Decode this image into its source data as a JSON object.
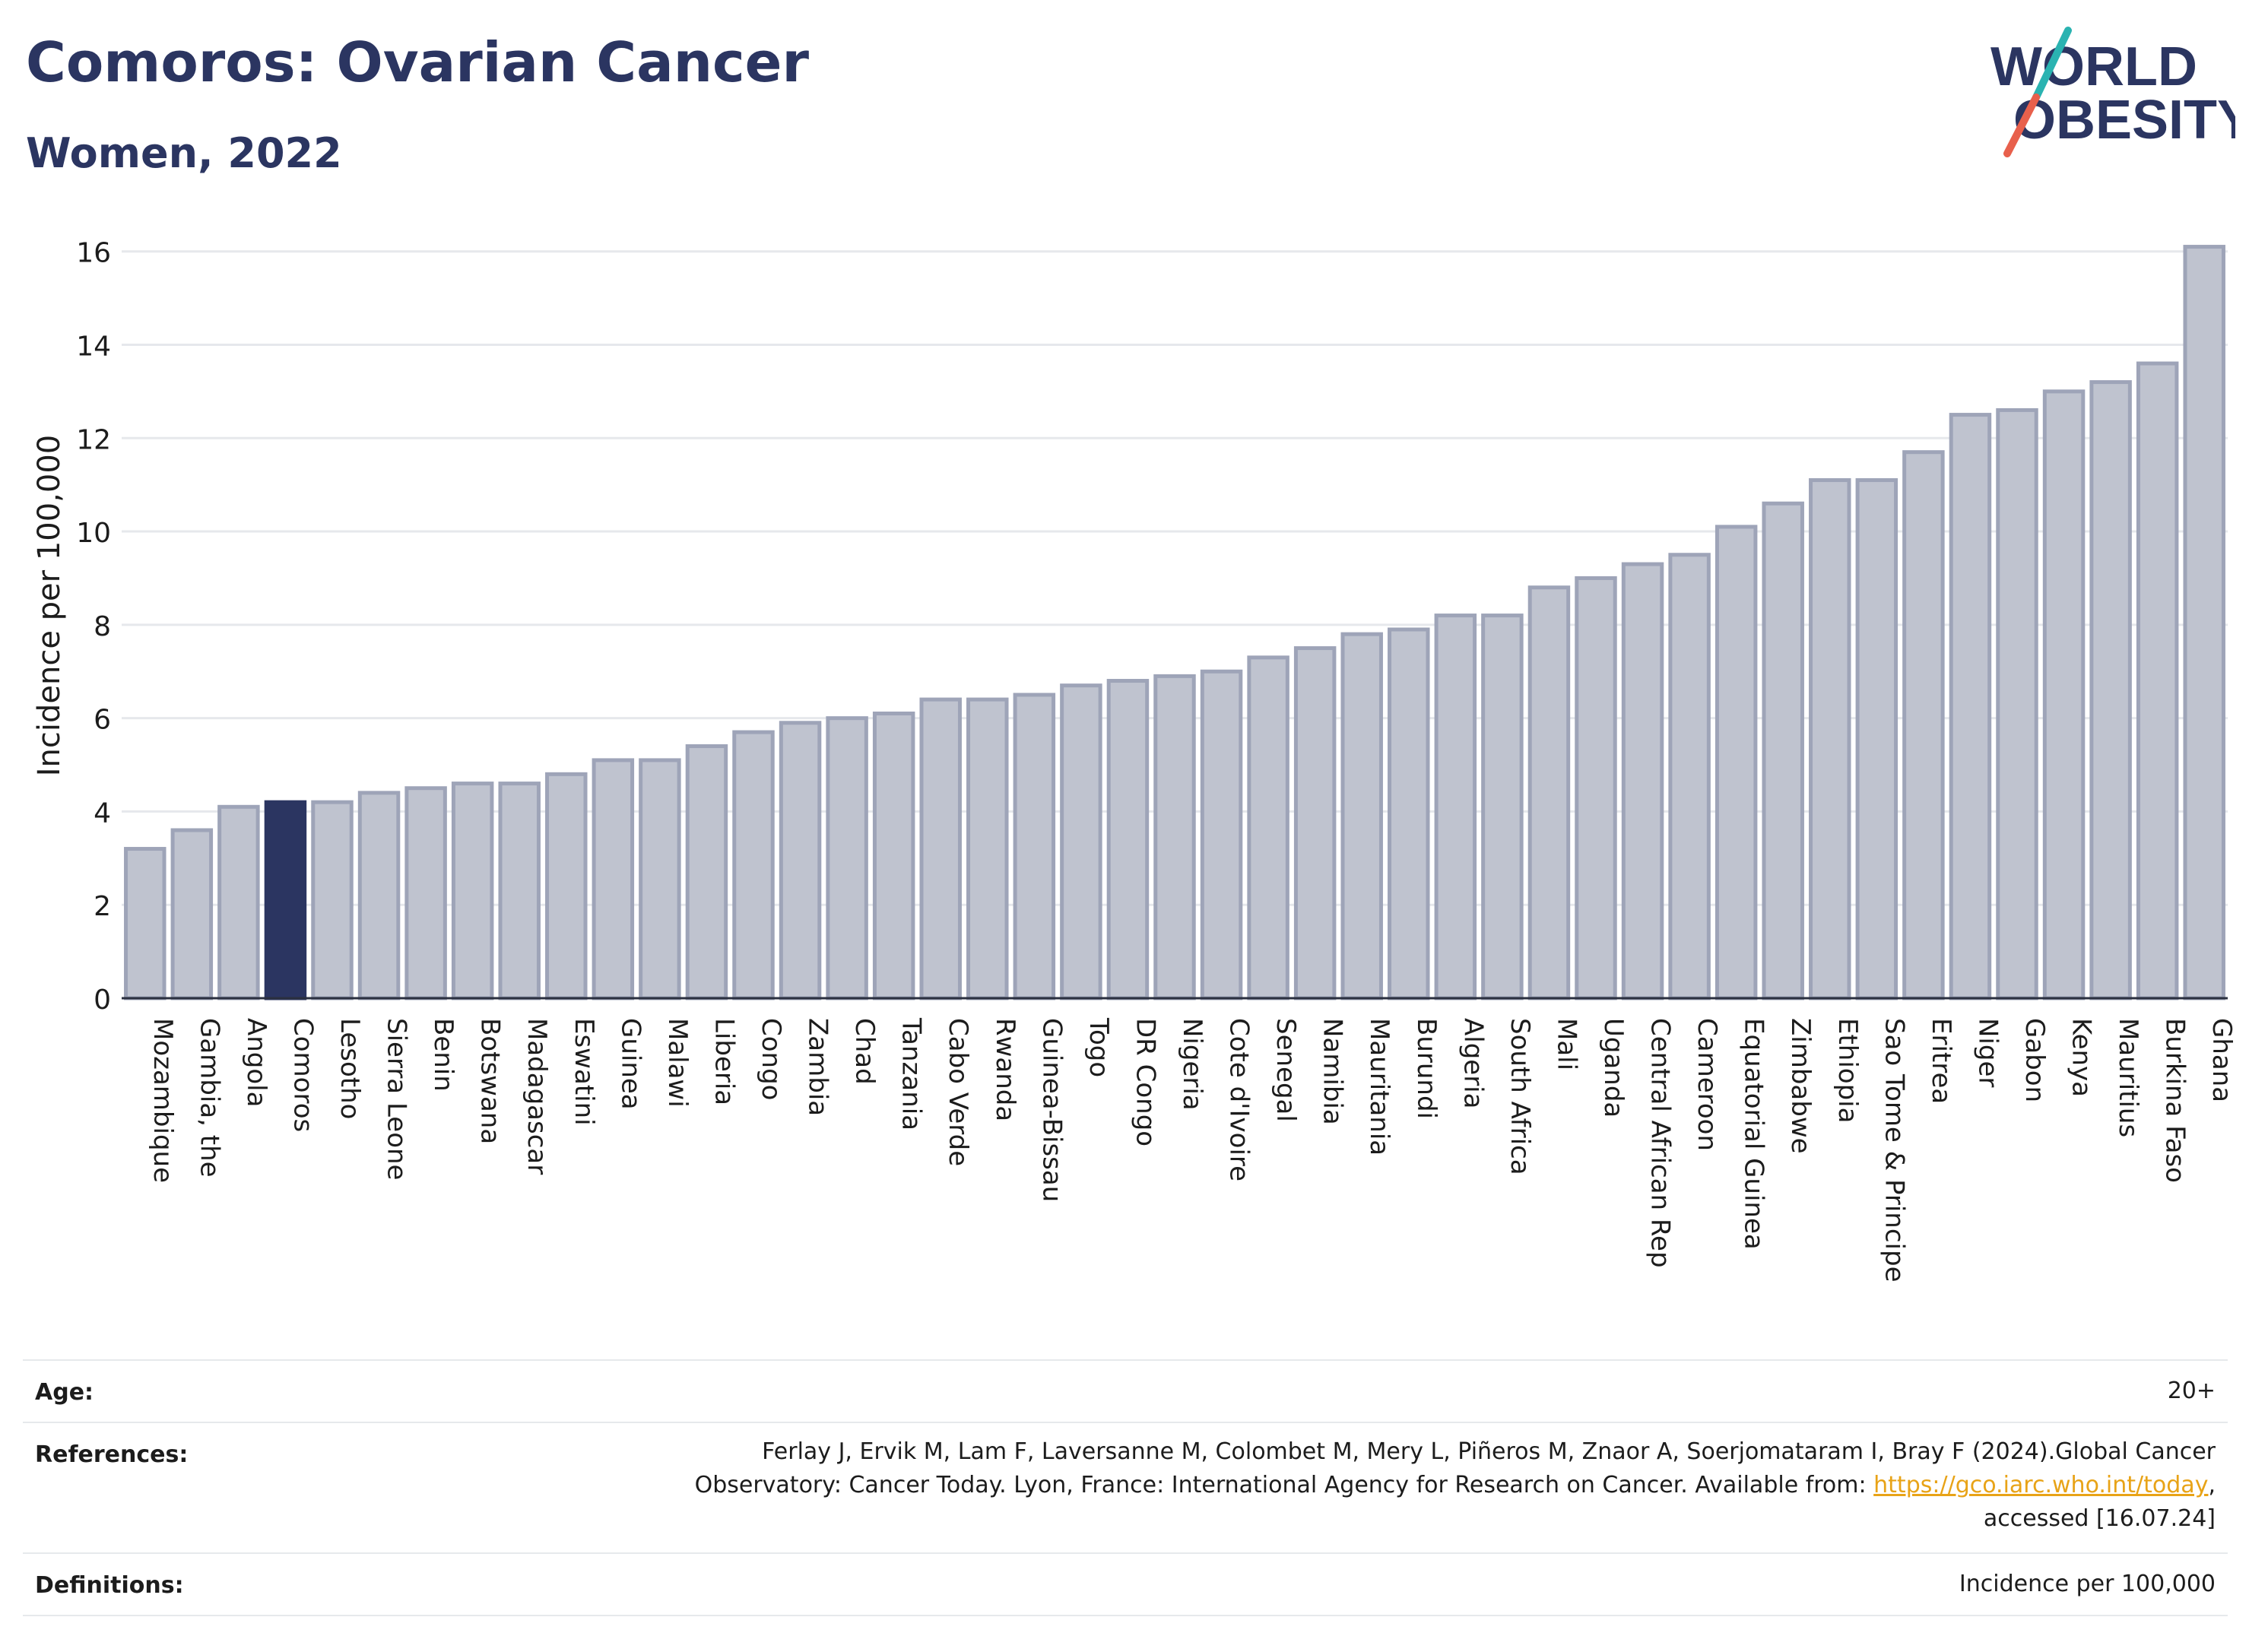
{
  "header": {
    "title": "Comoros: Ovarian Cancer",
    "subtitle": "Women, 2022"
  },
  "logo": {
    "line1": "WORLD",
    "line2": "OBESITY",
    "text_color": "#2b3561",
    "slash_colors": [
      "#2ab3b1",
      "#e8604c"
    ]
  },
  "chart_data": {
    "type": "bar",
    "title": "Comoros: Ovarian Cancer",
    "subtitle": "Women, 2022",
    "ylabel": "Incidence per 100,000",
    "xlabel": "",
    "ylim": [
      0,
      16.5
    ],
    "yticks": [
      0,
      2,
      4,
      6,
      8,
      10,
      12,
      14,
      16
    ],
    "grid": true,
    "highlight": "Comoros",
    "colors": {
      "bar": "#bfc3cf",
      "bar_edge": "#9ea4b8",
      "highlight": "#2b3561"
    },
    "categories": [
      "Mozambique",
      "Gambia, the",
      "Angola",
      "Comoros",
      "Lesotho",
      "Sierra Leone",
      "Benin",
      "Botswana",
      "Madagascar",
      "Eswatini",
      "Guinea",
      "Malawi",
      "Liberia",
      "Congo",
      "Zambia",
      "Chad",
      "Tanzania",
      "Cabo Verde",
      "Rwanda",
      "Guinea-Bissau",
      "Togo",
      "DR Congo",
      "Nigeria",
      "Cote d'Ivoire",
      "Senegal",
      "Namibia",
      "Mauritania",
      "Burundi",
      "Algeria",
      "South Africa",
      "Mali",
      "Uganda",
      "Central African Rep",
      "Cameroon",
      "Equatorial Guinea",
      "Zimbabwe",
      "Ethiopia",
      "Sao Tome & Principe",
      "Eritrea",
      "Niger",
      "Gabon",
      "Kenya",
      "Mauritius",
      "Burkina Faso",
      "Ghana"
    ],
    "values": [
      3.2,
      3.6,
      4.1,
      4.2,
      4.2,
      4.4,
      4.5,
      4.6,
      4.6,
      4.8,
      5.1,
      5.1,
      5.4,
      5.7,
      5.9,
      6.0,
      6.1,
      6.4,
      6.4,
      6.5,
      6.7,
      6.8,
      6.9,
      7.0,
      7.3,
      7.5,
      7.8,
      7.9,
      8.2,
      8.2,
      8.8,
      9.0,
      9.3,
      9.5,
      10.1,
      10.6,
      11.1,
      11.1,
      11.7,
      12.5,
      12.6,
      13.0,
      13.2,
      13.6,
      16.1
    ]
  },
  "info": {
    "age_label": "Age:",
    "age_value": "20+",
    "references_label": "References:",
    "references_line1": "Ferlay J, Ervik M, Lam F, Laversanne M, Colombet M, Mery L, Piñeros M, Znaor A, Soerjomataram I, Bray F (2024).Global Cancer",
    "references_line2_prefix": "Observatory: Cancer Today. Lyon, France: International Agency for Research on Cancer. Available from: ",
    "references_link": "https://gco.iarc.who.int/today",
    "references_line2_suffix": ",",
    "references_line3": "accessed [16.07.24]",
    "definitions_label": "Definitions:",
    "definitions_value": "Incidence per 100,000"
  }
}
